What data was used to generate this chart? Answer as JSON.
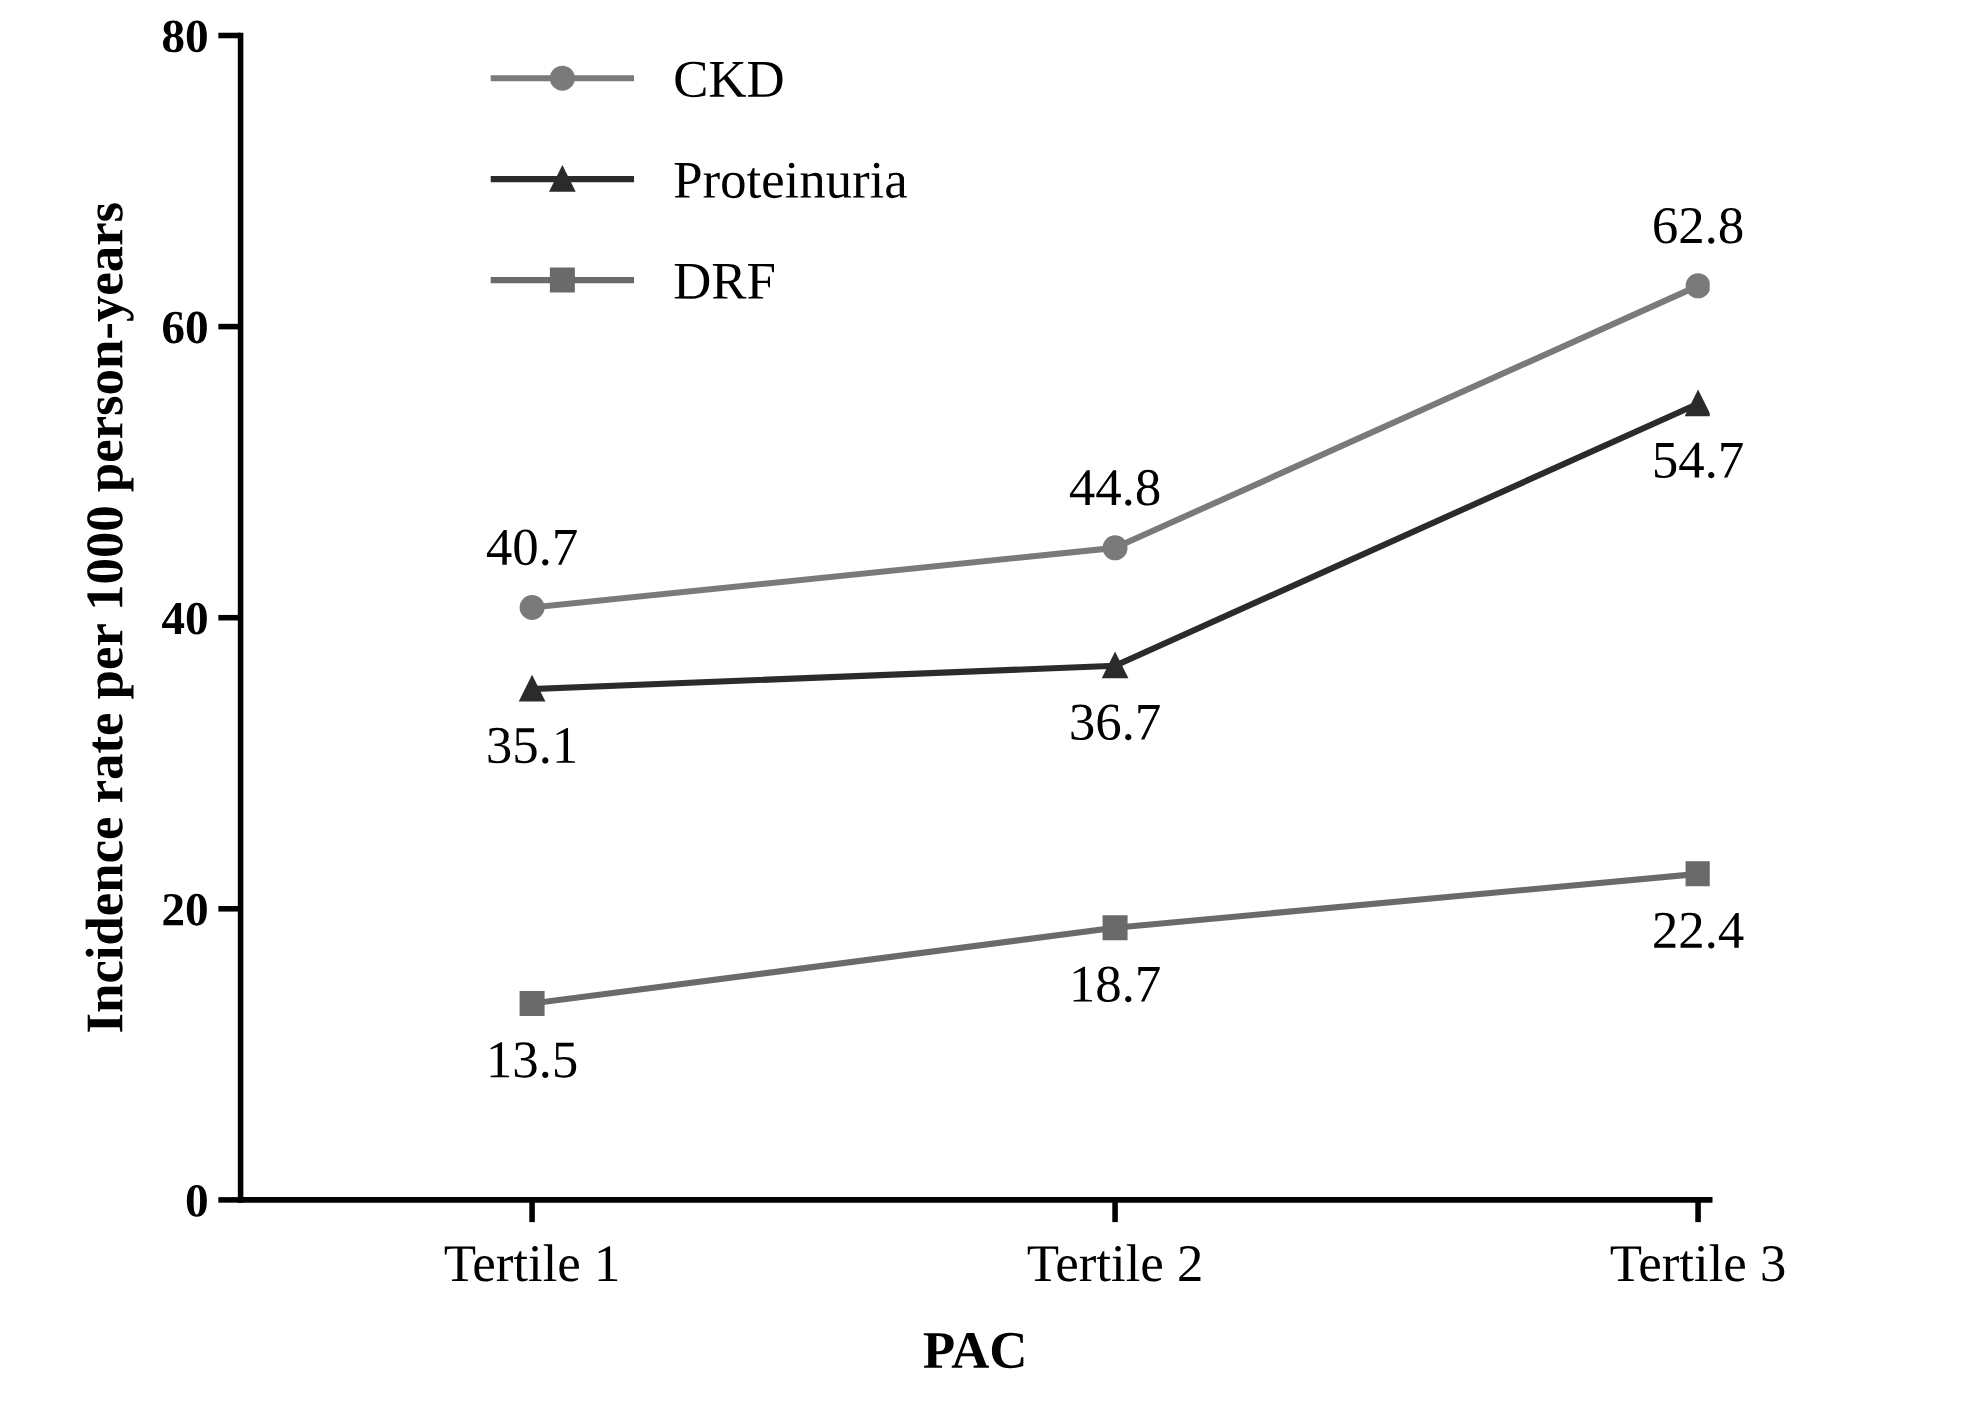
{
  "chart_data": {
    "type": "line",
    "xlabel": "PAC",
    "ylabel": "Incidence rate per 1000 person-years",
    "categories": [
      "Tertile 1",
      "Tertile 2",
      "Tertile 3"
    ],
    "series": [
      {
        "name": "CKD",
        "color": "#7a7a7a",
        "marker": "circle",
        "values": [
          40.7,
          44.8,
          62.8
        ]
      },
      {
        "name": "Proteinuria",
        "color": "#2b2b2b",
        "marker": "triangle",
        "values": [
          35.1,
          36.7,
          54.7
        ]
      },
      {
        "name": "DRF",
        "color": "#6a6a6a",
        "marker": "square",
        "values": [
          13.5,
          18.7,
          22.4
        ]
      }
    ],
    "ylim": [
      0,
      80
    ],
    "yticks": [
      0,
      20,
      40,
      60,
      80
    ],
    "data_labels": true,
    "legend": "top left",
    "grid": false,
    "line_style": "solid"
  }
}
